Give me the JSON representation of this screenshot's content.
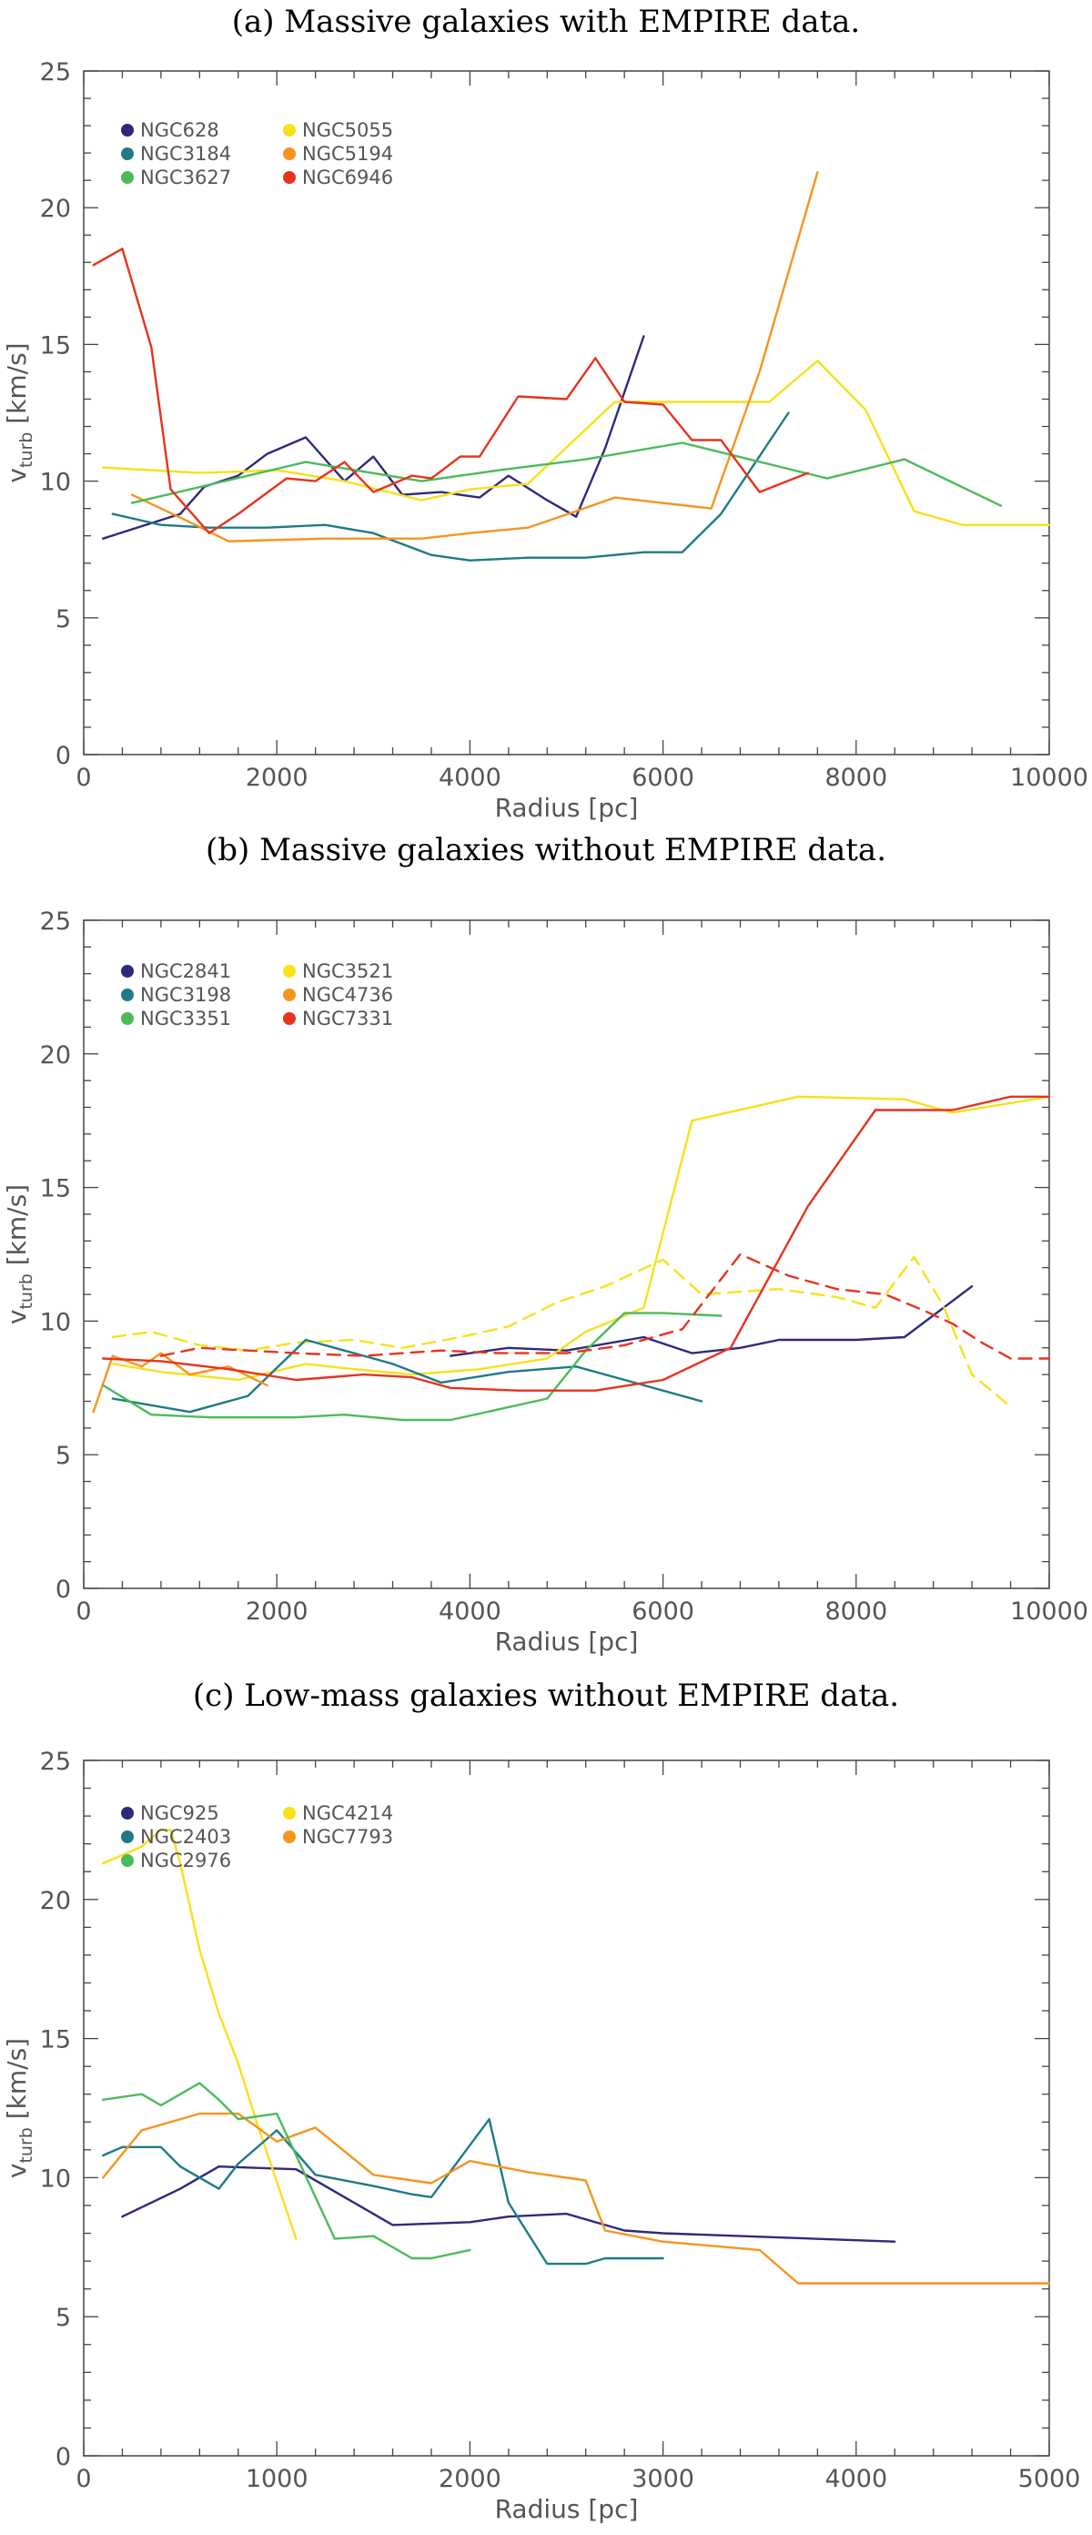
{
  "chart_data": [
    {
      "type": "line",
      "title": "(a) Massive galaxies with EMPIRE data.",
      "xlabel": "Radius [pc]",
      "ylabel": "v_turb [km/s]",
      "ylabel_main": "v",
      "ylabel_sub": "turb",
      "ylabel_unit": " [km/s]",
      "xlim": [
        0,
        10000
      ],
      "ylim": [
        0,
        25
      ],
      "xticks": [
        "0",
        "2000",
        "4000",
        "6000",
        "8000",
        "10000"
      ],
      "yticks": [
        "0",
        "5",
        "10",
        "15",
        "20",
        "25"
      ],
      "legend_position": "top-left",
      "series": [
        {
          "name": "NGC628",
          "color": "#2e2a7a",
          "dash": false,
          "x": [
            200,
            1000,
            1250,
            1600,
            1900,
            2300,
            2700,
            3000,
            3300,
            3700,
            4100,
            4400,
            4800,
            5100,
            5400,
            5800
          ],
          "y": [
            7.9,
            8.8,
            9.8,
            10.2,
            11.0,
            11.6,
            10.0,
            10.9,
            9.5,
            9.6,
            9.4,
            10.2,
            9.3,
            8.7,
            11.2,
            15.3
          ]
        },
        {
          "name": "NGC5055",
          "color": "#f7e11a",
          "dash": false,
          "x": [
            200,
            1200,
            2000,
            2700,
            3500,
            4000,
            4600,
            5500,
            6200,
            7100,
            7600,
            8100,
            8600,
            9100,
            10000
          ],
          "y": [
            10.5,
            10.3,
            10.4,
            10.0,
            9.3,
            9.7,
            9.9,
            12.9,
            12.9,
            12.9,
            14.4,
            12.6,
            8.9,
            8.4,
            8.4
          ]
        },
        {
          "name": "NGC3184",
          "color": "#1f7a86",
          "dash": false,
          "x": [
            300,
            800,
            1300,
            1900,
            2500,
            3000,
            3600,
            4000,
            4600,
            5200,
            5800,
            6200,
            6600,
            7300
          ],
          "y": [
            8.8,
            8.4,
            8.3,
            8.3,
            8.4,
            8.1,
            7.3,
            7.1,
            7.2,
            7.2,
            7.4,
            7.4,
            8.8,
            12.5
          ]
        },
        {
          "name": "NGC5194",
          "color": "#f7941d",
          "dash": false,
          "x": [
            500,
            1100,
            1500,
            2500,
            3000,
            3500,
            4000,
            4600,
            5100,
            5500,
            6500,
            7000,
            7600
          ],
          "y": [
            9.5,
            8.5,
            7.8,
            7.9,
            7.9,
            7.9,
            8.1,
            8.3,
            8.9,
            9.4,
            9.0,
            14.0,
            21.3
          ]
        },
        {
          "name": "NGC3627",
          "color": "#4cbb5a",
          "dash": false,
          "x": [
            500,
            2300,
            3500,
            4300,
            5200,
            6200,
            7700,
            8500,
            9500
          ],
          "y": [
            9.2,
            10.7,
            10.0,
            10.4,
            10.8,
            11.4,
            10.1,
            10.8,
            9.1
          ]
        },
        {
          "name": "NGC6946",
          "color": "#e8331c",
          "dash": false,
          "x": [
            100,
            400,
            700,
            900,
            1300,
            1600,
            2100,
            2400,
            2700,
            3000,
            3400,
            3600,
            3900,
            4100,
            4500,
            5000,
            5300,
            5600,
            6000,
            6300,
            6600,
            7000,
            7500
          ],
          "y": [
            17.9,
            18.5,
            14.9,
            9.7,
            8.1,
            8.8,
            10.1,
            10.0,
            10.7,
            9.6,
            10.2,
            10.1,
            10.9,
            10.9,
            13.1,
            13.0,
            14.5,
            12.9,
            12.8,
            11.5,
            11.5,
            9.6,
            10.3
          ]
        }
      ]
    },
    {
      "type": "line",
      "title": "(b) Massive galaxies without EMPIRE data.",
      "xlabel": "Radius [pc]",
      "ylabel": "v_turb [km/s]",
      "ylabel_main": "v",
      "ylabel_sub": "turb",
      "ylabel_unit": " [km/s]",
      "xlim": [
        0,
        10000
      ],
      "ylim": [
        0,
        25
      ],
      "xticks": [
        "0",
        "2000",
        "4000",
        "6000",
        "8000",
        "10000"
      ],
      "yticks": [
        "0",
        "5",
        "10",
        "15",
        "20",
        "25"
      ],
      "legend_position": "top-left",
      "series": [
        {
          "name": "NGC2841",
          "color": "#2e2a7a",
          "dash": false,
          "x": [
            3800,
            4400,
            5000,
            5800,
            6300,
            6800,
            7200,
            8000,
            8500,
            9200
          ],
          "y": [
            8.7,
            9.0,
            8.9,
            9.4,
            8.8,
            9.0,
            9.3,
            9.3,
            9.4,
            11.3
          ]
        },
        {
          "name": "NGC3521",
          "color": "#f7e11a",
          "dash": false,
          "x": [
            300,
            800,
            1600,
            2300,
            2800,
            3400,
            4100,
            4800,
            5200,
            5800,
            6300,
            7400,
            8500,
            9000,
            10000
          ],
          "y": [
            8.4,
            8.1,
            7.8,
            8.4,
            8.2,
            8.0,
            8.2,
            8.6,
            9.6,
            10.5,
            17.5,
            18.4,
            18.3,
            17.8,
            18.4
          ]
        },
        {
          "name": "NGC3521 (dashed)",
          "color": "#f7e11a",
          "dash": true,
          "x": [
            300,
            700,
            1200,
            1700,
            2200,
            2800,
            3300,
            3900,
            4400,
            4900,
            5400,
            6000,
            6400,
            7200,
            7800,
            8200,
            8600,
            8900,
            9200,
            9600
          ],
          "y": [
            9.4,
            9.6,
            9.1,
            8.9,
            9.2,
            9.3,
            9.0,
            9.4,
            9.8,
            10.7,
            11.3,
            12.3,
            11.0,
            11.2,
            10.9,
            10.5,
            12.4,
            10.6,
            8.0,
            6.8
          ]
        },
        {
          "name": "NGC3198",
          "color": "#1f7a86",
          "dash": false,
          "x": [
            300,
            1100,
            1700,
            2300,
            2600,
            3200,
            3700,
            4400,
            5100,
            5700,
            6400
          ],
          "y": [
            7.1,
            6.6,
            7.2,
            9.3,
            9.0,
            8.4,
            7.7,
            8.1,
            8.3,
            7.7,
            7.0
          ]
        },
        {
          "name": "NGC4736",
          "color": "#f7941d",
          "dash": false,
          "x": [
            100,
            300,
            600,
            800,
            1100,
            1500,
            1900
          ],
          "y": [
            6.6,
            8.7,
            8.3,
            8.8,
            8.0,
            8.3,
            7.6
          ]
        },
        {
          "name": "NGC3351",
          "color": "#4cbb5a",
          "dash": false,
          "x": [
            200,
            700,
            1300,
            2200,
            2700,
            3300,
            3800,
            4300,
            4800,
            5200,
            5600,
            6000,
            6600
          ],
          "y": [
            7.6,
            6.5,
            6.4,
            6.4,
            6.5,
            6.3,
            6.3,
            6.7,
            7.1,
            8.9,
            10.3,
            10.3,
            10.2
          ]
        },
        {
          "name": "NGC7331",
          "color": "#e8331c",
          "dash": false,
          "x": [
            200,
            800,
            1500,
            2200,
            2900,
            3400,
            3800,
            4500,
            5300,
            6000,
            6700,
            7500,
            8200,
            9000,
            9600,
            10000
          ],
          "y": [
            8.6,
            8.5,
            8.2,
            7.8,
            8.0,
            7.9,
            7.5,
            7.4,
            7.4,
            7.8,
            9.0,
            14.3,
            17.9,
            17.9,
            18.4,
            18.4
          ]
        },
        {
          "name": "NGC7331 (dashed)",
          "color": "#e8331c",
          "dash": true,
          "x": [
            800,
            1200,
            2200,
            2900,
            3700,
            4300,
            5000,
            5600,
            6200,
            6800,
            7300,
            7800,
            8300,
            8700,
            9000,
            9300,
            9600,
            10000
          ],
          "y": [
            8.7,
            9.0,
            8.8,
            8.7,
            8.9,
            8.8,
            8.8,
            9.1,
            9.7,
            12.5,
            11.7,
            11.2,
            11.0,
            10.4,
            9.9,
            9.2,
            8.6,
            8.6
          ]
        }
      ]
    },
    {
      "type": "line",
      "title": "(c) Low-mass galaxies without EMPIRE data.",
      "xlabel": "Radius [pc]",
      "ylabel": "v_turb [km/s]",
      "ylabel_main": "v",
      "ylabel_sub": "turb",
      "ylabel_unit": " [km/s]",
      "xlim": [
        0,
        5000
      ],
      "ylim": [
        0,
        25
      ],
      "xticks": [
        "0",
        "1000",
        "2000",
        "3000",
        "4000",
        "5000"
      ],
      "yticks": [
        "0",
        "5",
        "10",
        "15",
        "20",
        "25"
      ],
      "legend_position": "top-left",
      "series": [
        {
          "name": "NGC925",
          "color": "#2e2a7a",
          "dash": false,
          "x": [
            200,
            500,
            700,
            1100,
            1300,
            1600,
            2000,
            2200,
            2500,
            2800,
            3000,
            4200
          ],
          "y": [
            8.6,
            9.6,
            10.4,
            10.3,
            9.5,
            8.3,
            8.4,
            8.6,
            8.7,
            8.1,
            8.0,
            7.7
          ]
        },
        {
          "name": "NGC4214",
          "color": "#f7e11a",
          "dash": false,
          "x": [
            100,
            300,
            400,
            450,
            500,
            600,
            700,
            800,
            900,
            1100
          ],
          "y": [
            21.3,
            21.9,
            22.5,
            22.5,
            21.3,
            18.2,
            15.9,
            14.1,
            11.9,
            7.8
          ]
        },
        {
          "name": "NGC2403",
          "color": "#1f7a86",
          "dash": false,
          "x": [
            100,
            200,
            400,
            500,
            700,
            800,
            1000,
            1200,
            1500,
            1700,
            1800,
            2100,
            2200,
            2400,
            2600,
            2700,
            3000
          ],
          "y": [
            10.8,
            11.1,
            11.1,
            10.4,
            9.6,
            10.5,
            11.7,
            10.1,
            9.7,
            9.4,
            9.3,
            12.1,
            9.1,
            6.9,
            6.9,
            7.1,
            7.1
          ]
        },
        {
          "name": "NGC7793",
          "color": "#f7941d",
          "dash": false,
          "x": [
            100,
            300,
            600,
            800,
            1000,
            1200,
            1500,
            1800,
            2000,
            2300,
            2600,
            2700,
            3000,
            3500,
            3700,
            4200,
            5000
          ],
          "y": [
            10.0,
            11.7,
            12.3,
            12.3,
            11.3,
            11.8,
            10.1,
            9.8,
            10.6,
            10.2,
            9.9,
            8.1,
            7.7,
            7.4,
            6.2,
            6.2,
            6.2
          ]
        },
        {
          "name": "NGC2976",
          "color": "#4cbb5a",
          "dash": false,
          "x": [
            100,
            300,
            400,
            600,
            700,
            800,
            1000,
            1300,
            1500,
            1700,
            1800,
            2000
          ],
          "y": [
            12.8,
            13.0,
            12.6,
            13.4,
            12.8,
            12.1,
            12.3,
            7.8,
            7.9,
            7.1,
            7.1,
            7.4
          ]
        }
      ]
    }
  ]
}
